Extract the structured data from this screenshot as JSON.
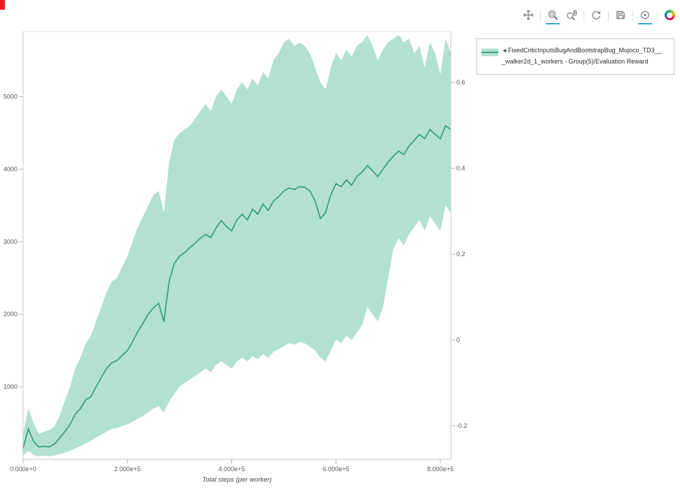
{
  "window": {
    "marker_color": "#ec1c24"
  },
  "toolbar": {
    "accent_color": "#35aae0",
    "tools": [
      {
        "name": "pan",
        "active": false
      },
      {
        "name": "box-zoom",
        "active": true
      },
      {
        "name": "wheel-zoom",
        "active": false
      },
      {
        "name": "reset",
        "active": false
      },
      {
        "name": "save",
        "active": false
      },
      {
        "name": "hover",
        "active": true
      },
      {
        "name": "bokeh-logo",
        "active": false
      }
    ]
  },
  "legend": {
    "marker": "◄",
    "label_line1": "FixedCriticInputsBugAndBootstrapBug_Mujoco_TD3__",
    "label_line2": "_walker2d_1_workers - Group(5)/Evaluation Reward",
    "swatch_fill": "#66c2a5",
    "swatch_line": "#2e9c74"
  },
  "chart_data": {
    "type": "line",
    "title": "",
    "xlabel": "Total steps (per worker)",
    "ylabel": "",
    "x_range": [
      0,
      820000
    ],
    "y_left_range": [
      0,
      5900
    ],
    "y_right_range": [
      -0.278,
      0.719
    ],
    "grid": false,
    "legend_position": "top-right-outside",
    "x_ticks": [
      {
        "value": 0,
        "label": "0.000e+0"
      },
      {
        "value": 200000,
        "label": "2.000e+5"
      },
      {
        "value": 400000,
        "label": "4.000e+5"
      },
      {
        "value": 600000,
        "label": "6.000e+5"
      },
      {
        "value": 800000,
        "label": "8.000e+5"
      }
    ],
    "y_left_ticks": [
      {
        "value": 1000,
        "label": "1000"
      },
      {
        "value": 2000,
        "label": "2000"
      },
      {
        "value": 3000,
        "label": "3000"
      },
      {
        "value": 4000,
        "label": "4000"
      },
      {
        "value": 5000,
        "label": "5000"
      }
    ],
    "y_right_ticks": [
      {
        "value": 0.6,
        "label": "0.6"
      },
      {
        "value": 0.4,
        "label": "0.4"
      },
      {
        "value": 0.2,
        "label": "0.2"
      },
      {
        "value": 0,
        "label": "0"
      },
      {
        "value": -0.2,
        "label": "-0.2"
      }
    ],
    "series": [
      {
        "name": "FixedCriticInputsBugAndBootstrapBug_Mujoco_TD3___walker2d_1_workers - Group(5)/Evaluation Reward",
        "line_color": "#2e9c74",
        "band_color": "#66c2a5",
        "band_alpha": 0.5,
        "x": [
          0,
          10000,
          20000,
          30000,
          40000,
          50000,
          60000,
          70000,
          80000,
          90000,
          100000,
          110000,
          120000,
          130000,
          140000,
          150000,
          160000,
          170000,
          180000,
          190000,
          200000,
          210000,
          220000,
          230000,
          240000,
          250000,
          260000,
          270000,
          280000,
          290000,
          300000,
          310000,
          320000,
          330000,
          340000,
          350000,
          360000,
          370000,
          380000,
          390000,
          400000,
          410000,
          420000,
          430000,
          440000,
          450000,
          460000,
          470000,
          480000,
          490000,
          500000,
          510000,
          520000,
          530000,
          540000,
          550000,
          560000,
          570000,
          580000,
          590000,
          600000,
          610000,
          620000,
          630000,
          640000,
          650000,
          660000,
          670000,
          680000,
          690000,
          700000,
          710000,
          720000,
          730000,
          740000,
          750000,
          760000,
          770000,
          780000,
          790000,
          800000,
          810000,
          820000
        ],
        "mean": [
          150,
          420,
          250,
          170,
          180,
          170,
          210,
          290,
          380,
          480,
          620,
          700,
          820,
          860,
          1000,
          1130,
          1250,
          1330,
          1360,
          1430,
          1500,
          1620,
          1760,
          1880,
          2000,
          2090,
          2150,
          1900,
          2450,
          2700,
          2800,
          2850,
          2920,
          2980,
          3050,
          3100,
          3060,
          3190,
          3290,
          3210,
          3150,
          3300,
          3380,
          3300,
          3450,
          3380,
          3520,
          3430,
          3560,
          3620,
          3700,
          3740,
          3720,
          3760,
          3750,
          3700,
          3560,
          3320,
          3400,
          3650,
          3800,
          3760,
          3850,
          3780,
          3900,
          3960,
          4050,
          3980,
          3900,
          4000,
          4100,
          4180,
          4250,
          4200,
          4320,
          4400,
          4480,
          4420,
          4550,
          4480,
          4420,
          4600,
          4550
        ],
        "lower": [
          50,
          120,
          60,
          40,
          50,
          40,
          50,
          70,
          90,
          120,
          150,
          180,
          220,
          250,
          300,
          340,
          380,
          420,
          430,
          460,
          480,
          520,
          560,
          600,
          650,
          700,
          730,
          640,
          800,
          900,
          1000,
          1050,
          1100,
          1150,
          1200,
          1250,
          1200,
          1300,
          1350,
          1300,
          1250,
          1350,
          1400,
          1350,
          1420,
          1380,
          1450,
          1400,
          1480,
          1520,
          1560,
          1600,
          1580,
          1620,
          1600,
          1550,
          1500,
          1400,
          1350,
          1500,
          1650,
          1600,
          1700,
          1650,
          1750,
          1850,
          2100,
          2000,
          1900,
          2100,
          2500,
          2900,
          3050,
          2950,
          3100,
          3200,
          3300,
          3150,
          3350,
          3250,
          3150,
          3500,
          3400
        ],
        "upper": [
          350,
          700,
          500,
          350,
          380,
          400,
          450,
          600,
          800,
          1000,
          1250,
          1400,
          1600,
          1700,
          1900,
          2100,
          2300,
          2450,
          2500,
          2650,
          2800,
          3000,
          3200,
          3350,
          3500,
          3650,
          3700,
          3400,
          4100,
          4400,
          4500,
          4550,
          4600,
          4700,
          4800,
          4900,
          4800,
          5000,
          5100,
          5000,
          4900,
          5100,
          5200,
          5100,
          5250,
          5150,
          5350,
          5250,
          5500,
          5600,
          5750,
          5800,
          5700,
          5750,
          5700,
          5600,
          5400,
          5200,
          5100,
          5400,
          5600,
          5500,
          5650,
          5550,
          5700,
          5750,
          5850,
          5700,
          5500,
          5650,
          5750,
          5800,
          5850,
          5750,
          5800,
          5600,
          5700,
          5400,
          5750,
          5600,
          5300,
          5800,
          5600
        ]
      }
    ]
  }
}
